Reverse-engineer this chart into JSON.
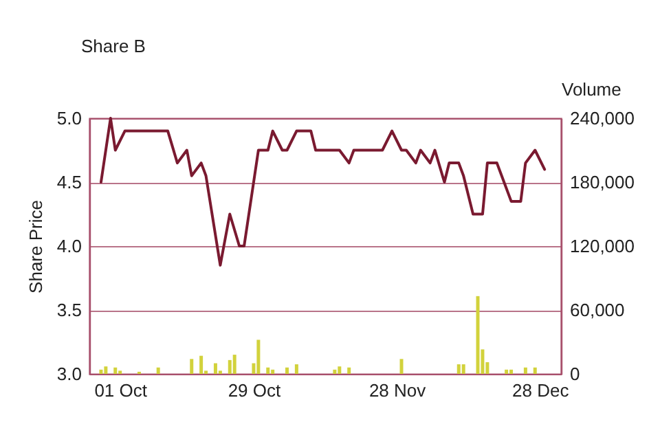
{
  "chart_data": {
    "type": "line",
    "title": "Share B",
    "ylabel": "Share Price",
    "y2label": "Volume",
    "xlim": [
      "--09-26",
      "--12-31"
    ],
    "xticks": [
      {
        "value": "--10-01",
        "label": "01 Oct"
      },
      {
        "value": "--10-29",
        "label": "29 Oct"
      },
      {
        "value": "--11-28",
        "label": "28 Nov"
      },
      {
        "value": "--12-28",
        "label": "28 Dec"
      }
    ],
    "ylim": [
      3,
      5
    ],
    "yticks": [
      {
        "value": 3,
        "label": "3.0"
      },
      {
        "value": 3.5,
        "label": "3.5"
      },
      {
        "value": 4,
        "label": "4.0"
      },
      {
        "value": 4.5,
        "label": "4.5"
      },
      {
        "value": 5,
        "label": "5.0"
      }
    ],
    "y2lim": [
      0,
      240000
    ],
    "y2ticks": [
      {
        "value": 0,
        "label": "0"
      },
      {
        "value": 60000,
        "label": "60,000"
      },
      {
        "value": 120000,
        "label": "120,000"
      },
      {
        "value": 180000,
        "label": "180,000"
      },
      {
        "value": 240000,
        "label": "240,000"
      }
    ],
    "grid": "y",
    "series": [
      {
        "type": "bar",
        "axis": "y2",
        "color": "#d2d23c",
        "x": [
          "--09-27",
          "--09-28",
          "--09-30",
          "--10-01",
          "--10-05",
          "--10-09",
          "--10-16",
          "--10-18",
          "--10-19",
          "--10-21",
          "--10-22",
          "--10-24",
          "--10-25",
          "--10-29",
          "--10-30",
          "--11-01",
          "--11-02",
          "--11-05",
          "--11-07",
          "--11-15",
          "--11-16",
          "--11-18",
          "--11-29",
          "--12-11",
          "--12-12",
          "--12-15",
          "--12-16",
          "--12-17",
          "--12-21",
          "--12-22",
          "--12-25",
          "--12-27"
        ],
        "values": [
          4000,
          7000,
          6000,
          3000,
          2000,
          6000,
          14000,
          17000,
          3000,
          10000,
          3000,
          13000,
          18000,
          10000,
          32000,
          6000,
          4000,
          6000,
          9000,
          4000,
          7000,
          6000,
          14000,
          9000,
          9000,
          73000,
          23000,
          11000,
          4000,
          4000,
          6000,
          6000
        ]
      },
      {
        "color": "#7a1a30",
        "x": [
          "--09-27",
          "--09-29",
          "--09-30",
          "--10-02",
          "--10-11",
          "--10-13",
          "--10-15",
          "--10-16",
          "--10-18",
          "--10-19",
          "--10-22",
          "--10-24",
          "--10-26",
          "--10-27",
          "--10-30",
          "--11-01",
          "--11-02",
          "--11-04",
          "--11-05",
          "--11-07",
          "--11-10",
          "--11-11",
          "--11-16",
          "--11-18",
          "--11-19",
          "--11-25",
          "--11-27",
          "--11-29",
          "--11-30",
          "--12-02",
          "--12-03",
          "--12-05",
          "--12-06",
          "--12-08",
          "--12-09",
          "--12-11",
          "--12-12",
          "--12-14",
          "--12-16",
          "--12-17",
          "--12-19",
          "--12-22",
          "--12-24",
          "--12-25",
          "--12-27",
          "--12-29"
        ],
        "values": [
          4.5,
          5.0,
          4.75,
          4.9,
          4.9,
          4.65,
          4.75,
          4.55,
          4.65,
          4.55,
          3.85,
          4.25,
          4.0,
          4.0,
          4.75,
          4.75,
          4.9,
          4.75,
          4.75,
          4.9,
          4.9,
          4.75,
          4.75,
          4.65,
          4.75,
          4.75,
          4.9,
          4.75,
          4.75,
          4.65,
          4.75,
          4.65,
          4.75,
          4.5,
          4.65,
          4.65,
          4.55,
          4.25,
          4.25,
          4.65,
          4.65,
          4.35,
          4.35,
          4.65,
          4.75,
          4.6
        ]
      }
    ]
  }
}
